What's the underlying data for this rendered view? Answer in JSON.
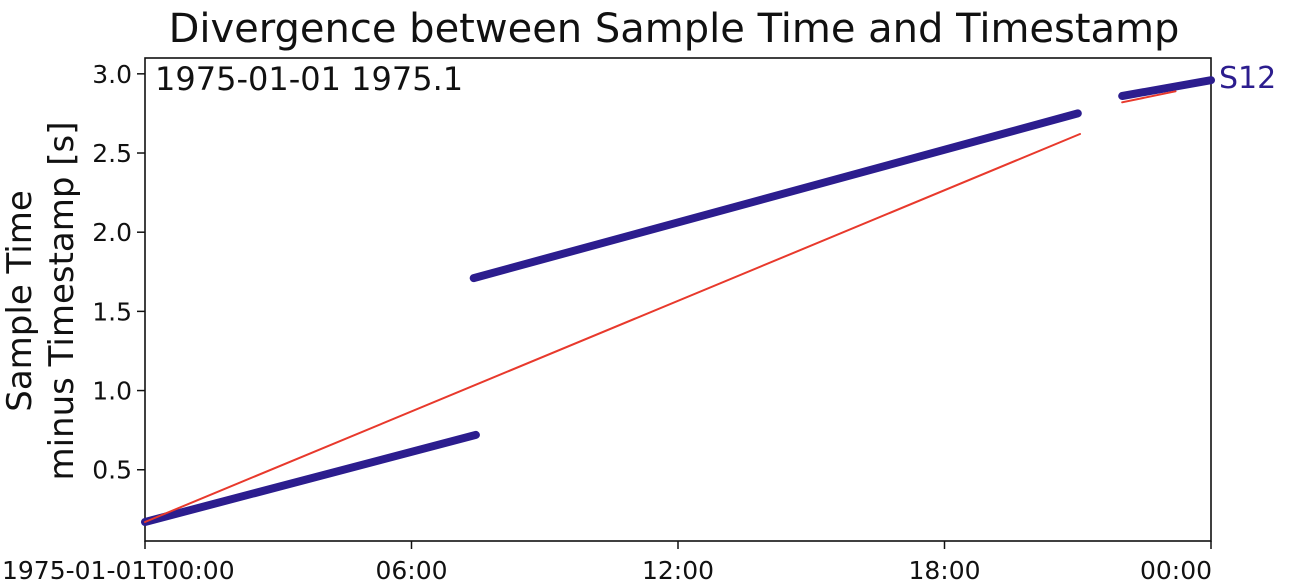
{
  "chart_data": {
    "type": "line",
    "title": "Divergence between Sample Time and Timestamp",
    "ylabel_lines": [
      "Sample Time",
      "minus Timestamp [s]"
    ],
    "annotation": "1975-01-01 1975.1",
    "xlim": [
      0,
      24
    ],
    "ylim": [
      0.05,
      3.1
    ],
    "x_ticks": [
      {
        "value": 0,
        "label": "1975-01-01T00:00"
      },
      {
        "value": 6,
        "label": "06:00"
      },
      {
        "value": 12,
        "label": "12:00"
      },
      {
        "value": 18,
        "label": "18:00"
      },
      {
        "value": 24,
        "label": "00:00"
      }
    ],
    "y_ticks": [
      {
        "value": 0.5,
        "label": "0.5"
      },
      {
        "value": 1.0,
        "label": "1.0"
      },
      {
        "value": 1.5,
        "label": "1.5"
      },
      {
        "value": 2.0,
        "label": "2.0"
      },
      {
        "value": 2.5,
        "label": "2.5"
      },
      {
        "value": 3.0,
        "label": "3.0"
      }
    ],
    "series": [
      {
        "name": "S12",
        "color": "#2c1d8e",
        "style": "thick",
        "segments": [
          {
            "x": [
              0.0,
              7.45
            ],
            "y": [
              0.17,
              0.72
            ]
          },
          {
            "x": [
              7.4,
              21.0
            ],
            "y": [
              1.71,
              2.75
            ]
          },
          {
            "x": [
              22.0,
              24.0
            ],
            "y": [
              2.86,
              2.96
            ]
          }
        ]
      },
      {
        "color": "#e8392c",
        "style": "thin",
        "segments": [
          {
            "x": [
              0.0,
              21.05
            ],
            "y": [
              0.17,
              2.62
            ]
          },
          {
            "x": [
              22.0,
              23.2
            ],
            "y": [
              2.82,
              2.89
            ]
          }
        ]
      }
    ]
  }
}
